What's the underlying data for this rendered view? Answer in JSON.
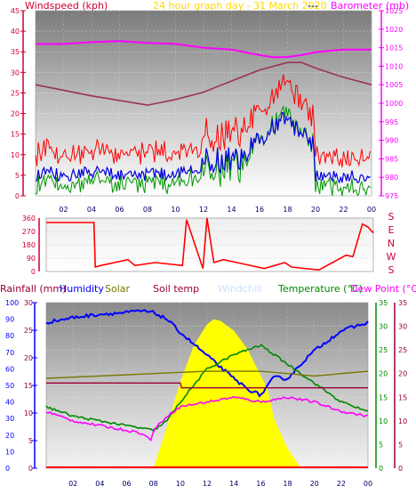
{
  "header": {
    "wind_label": "Windspeed (kph)",
    "title": "24 hour graph day - 31 March 2020",
    "dashes": "---",
    "baro_label": "Barometer (mb)"
  },
  "colors": {
    "wind": "#cc0033",
    "gust": "#ff0000",
    "wind_avg": "#009900",
    "wind_blue": "#0000dd",
    "baro": "#ff00ff",
    "baro_trend": "#993355",
    "title": "#ffd700",
    "rain": "#0000cc",
    "humidity": "#0000ff",
    "solar": "#777700",
    "soil": "#990033",
    "windchill": "#ccddff",
    "temp": "#008800",
    "dew": "#ff00ff",
    "sun": "#ffff00"
  },
  "legend": {
    "rainfall": "Rainfall (mm)",
    "humidity": "Humidity",
    "solar": "Solar",
    "soil": "Soil temp",
    "windchill": "Windchill",
    "temperature": "Temperature (°C)",
    "dewpoint": "Dew Point (°C)"
  },
  "direction_labels": [
    "S",
    "E",
    "N",
    "W",
    "S"
  ],
  "chart_data": [
    {
      "type": "line",
      "name": "wind-baro",
      "x_ticks": [
        "02",
        "04",
        "06",
        "08",
        "10",
        "12",
        "14",
        "16",
        "18",
        "20",
        "22",
        "00"
      ],
      "y_left_ticks": [
        "0",
        "5",
        "10",
        "15",
        "20",
        "25",
        "30",
        "35",
        "40",
        "45"
      ],
      "y_left_range": [
        0,
        45
      ],
      "y_right_ticks": [
        "975",
        "980",
        "985",
        "990",
        "995",
        "1000",
        "1005",
        "1010",
        "1015",
        "1020",
        "1025"
      ],
      "y_right_range": [
        975,
        1025
      ],
      "series": [
        {
          "key": "baro",
          "x": [
            0,
            2,
            4,
            6,
            8,
            10,
            12,
            14,
            16,
            17,
            18,
            19,
            20,
            22,
            24
          ],
          "y": [
            1016,
            1016,
            1016.5,
            1016.8,
            1016.3,
            1016,
            1015,
            1014.5,
            1013,
            1012.4,
            1012.5,
            1013,
            1013.8,
            1014.5,
            1014.5
          ]
        },
        {
          "key": "baro_trend",
          "x": [
            0,
            4,
            8,
            10,
            12,
            14,
            16,
            18,
            19,
            20,
            22,
            24
          ],
          "y": [
            1005,
            1002,
            999.5,
            1001,
            1003,
            1006,
            1009,
            1011,
            1011,
            1009.5,
            1007,
            1005
          ]
        }
      ]
    },
    {
      "type": "line",
      "name": "wind-direction",
      "y_ticks": [
        "0",
        "90",
        "180",
        "270",
        "360"
      ],
      "y_range": [
        0,
        360
      ],
      "series": [
        {
          "key": "wind_dir",
          "x": [
            0,
            3.5,
            3.6,
            4,
            6,
            6.5,
            8,
            10,
            10.3,
            11.5,
            11.8,
            12.3,
            13,
            14,
            16,
            17.5,
            18,
            20,
            21,
            22,
            22.5,
            23.2,
            23.6,
            24
          ],
          "y": [
            330,
            330,
            30,
            40,
            80,
            40,
            60,
            40,
            350,
            20,
            360,
            60,
            80,
            60,
            20,
            60,
            30,
            10,
            60,
            110,
            100,
            320,
            300,
            260
          ]
        }
      ]
    },
    {
      "type": "line",
      "name": "temperature-panel",
      "y_humidity_ticks": [
        "0",
        "10",
        "20",
        "30",
        "40",
        "50",
        "60",
        "70",
        "80",
        "90",
        "100"
      ],
      "y_humidity_range": [
        0,
        100
      ],
      "y_rain_ticks": [
        "0",
        "5",
        "10",
        "15",
        "20",
        "25",
        "30"
      ],
      "y_rain_range": [
        0,
        30
      ],
      "y_temp_ticks": [
        "0",
        "5",
        "10",
        "15",
        "20",
        "25",
        "30",
        "35"
      ],
      "y_temp_range": [
        0,
        35
      ],
      "x_ticks": [
        "02",
        "04",
        "06",
        "08",
        "10",
        "12",
        "14",
        "16",
        "18",
        "20",
        "22",
        "00"
      ],
      "series": [
        {
          "key": "humidity",
          "x": [
            0,
            2,
            4,
            6,
            7,
            8,
            9,
            10,
            12,
            14,
            15,
            16,
            17,
            18,
            19,
            20,
            22,
            24
          ],
          "y": [
            88,
            91,
            93,
            94,
            95,
            94,
            90,
            82,
            68,
            54,
            48,
            44,
            55,
            54,
            63,
            71,
            83,
            88
          ]
        },
        {
          "key": "temperature",
          "x": [
            0,
            2,
            4,
            6,
            7,
            8,
            9,
            10,
            12,
            14,
            16,
            17,
            18,
            19,
            20,
            22,
            24
          ],
          "y": [
            13,
            11,
            10,
            9,
            8.5,
            8,
            10,
            14,
            21,
            24,
            26,
            24,
            22,
            20,
            18,
            14,
            12
          ]
        },
        {
          "key": "dewpoint",
          "x": [
            0,
            2,
            4,
            6,
            7,
            7.8,
            8,
            9,
            10,
            12,
            14,
            16,
            18,
            20,
            22,
            24
          ],
          "y": [
            12,
            10,
            9,
            8,
            7.5,
            6,
            8,
            11,
            13,
            14,
            15,
            14,
            15,
            14,
            12,
            11
          ]
        },
        {
          "key": "solar",
          "x": [
            0,
            4,
            8,
            12,
            16,
            20,
            24
          ],
          "y": [
            19,
            19.5,
            20,
            20.5,
            20.5,
            19.5,
            20.5
          ]
        },
        {
          "key": "soil",
          "x": [
            0,
            10,
            10.1,
            24
          ],
          "y": [
            18,
            18,
            17,
            17
          ]
        }
      ],
      "sun_area": {
        "x": [
          8,
          9,
          10,
          11,
          12,
          12.5,
          13,
          14,
          15,
          16,
          16.5,
          17,
          18,
          19
        ],
        "y": [
          0,
          25,
          52,
          74,
          87,
          90,
          89,
          83,
          72,
          56,
          48,
          30,
          12,
          0
        ],
        "unit": "percent"
      }
    }
  ]
}
